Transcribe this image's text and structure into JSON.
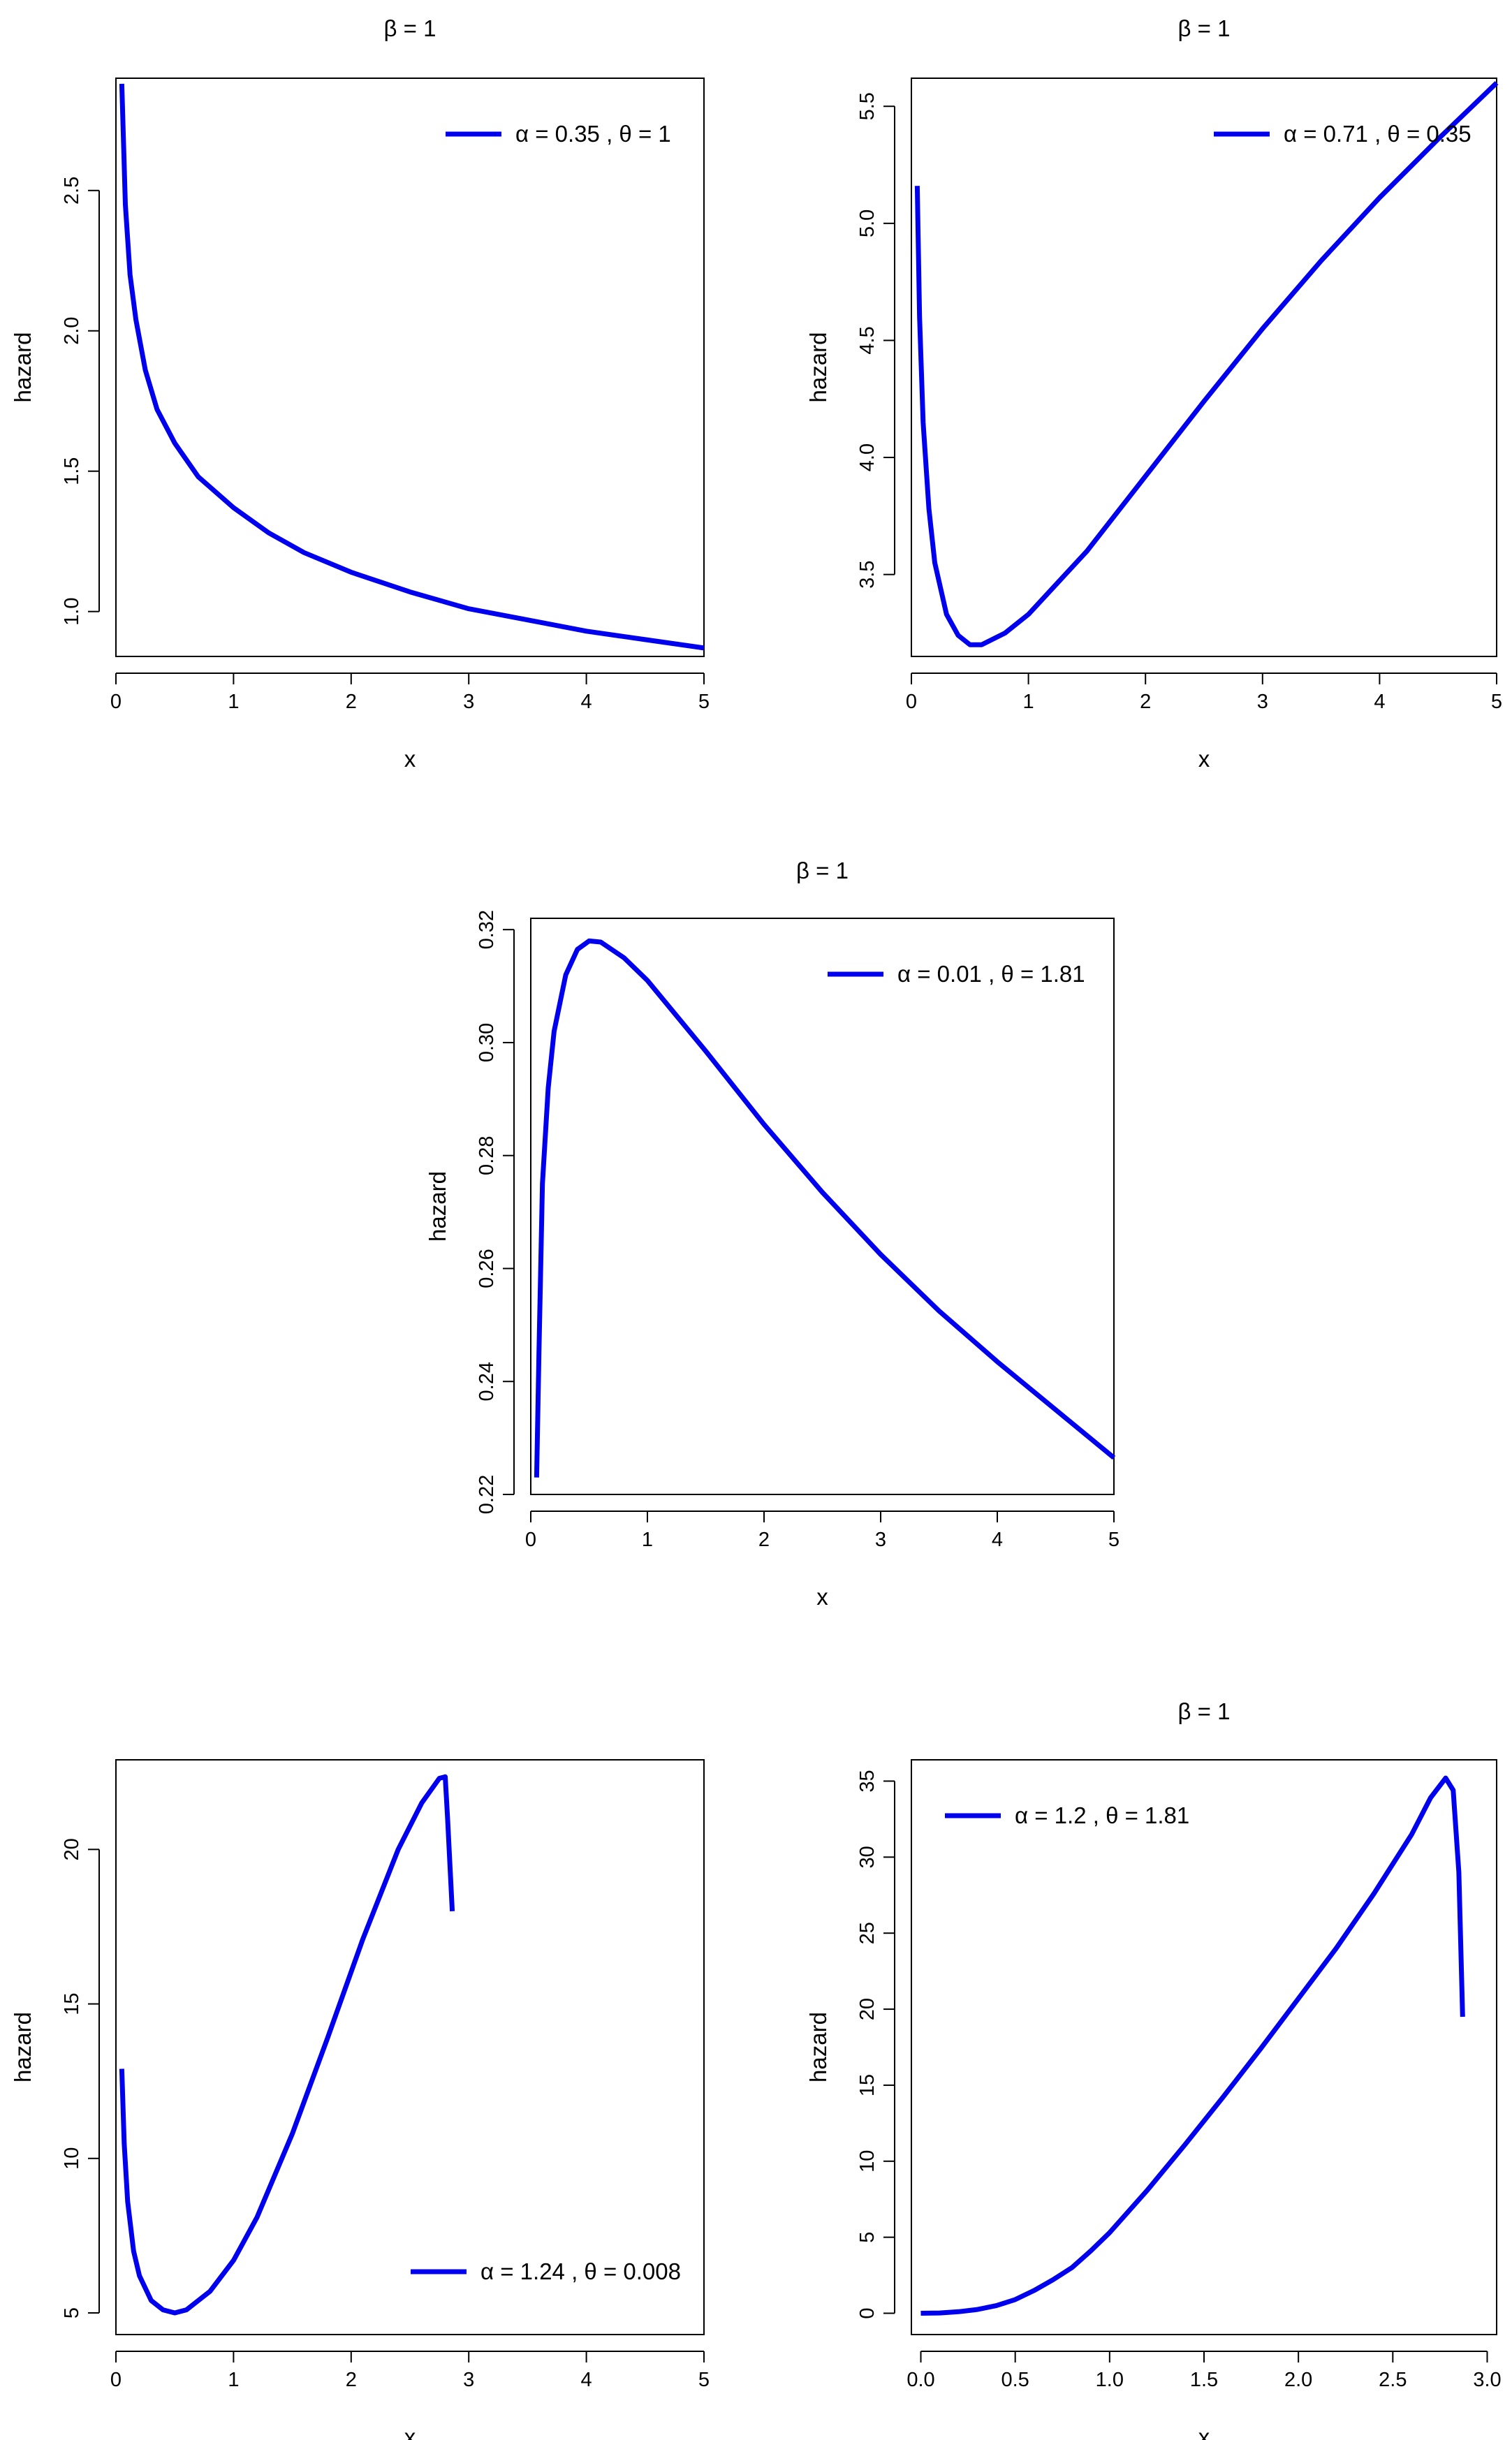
{
  "chart_data": [
    {
      "type": "line",
      "title": "β = 1",
      "xlabel": "x",
      "ylabel": "hazard",
      "xlim": [
        0,
        5
      ],
      "ylim": [
        0.84,
        2.9
      ],
      "x_ticks": [
        "0",
        "1",
        "2",
        "3",
        "4",
        "5"
      ],
      "y_ticks": [
        "1.0",
        "1.5",
        "2.0",
        "2.5"
      ],
      "legend_position": "top-right",
      "legend_label": "α = 0.35 , θ = 1",
      "color": "#0000ee",
      "series": [
        {
          "x": [
            0.05,
            0.08,
            0.12,
            0.17,
            0.25,
            0.35,
            0.5,
            0.7,
            1.0,
            1.3,
            1.6,
            2.0,
            2.5,
            3.0,
            3.5,
            4.0,
            4.5,
            5.0
          ],
          "y": [
            2.88,
            2.45,
            2.2,
            2.04,
            1.86,
            1.72,
            1.6,
            1.48,
            1.37,
            1.28,
            1.21,
            1.14,
            1.07,
            1.01,
            0.97,
            0.93,
            0.9,
            0.87
          ]
        }
      ]
    },
    {
      "type": "line",
      "title": "β = 1",
      "xlabel": "x",
      "ylabel": "hazard",
      "xlim": [
        0,
        5
      ],
      "ylim": [
        3.15,
        5.62
      ],
      "x_ticks": [
        "0",
        "1",
        "2",
        "3",
        "4",
        "5"
      ],
      "y_ticks": [
        "3.5",
        "4.0",
        "4.5",
        "5.0",
        "5.5"
      ],
      "legend_position": "top-right",
      "legend_label": "α = 0.71 , θ = 0.35",
      "color": "#0000ee",
      "series": [
        {
          "x": [
            0.05,
            0.07,
            0.1,
            0.15,
            0.2,
            0.3,
            0.4,
            0.5,
            0.6,
            0.8,
            1.0,
            1.5,
            2.0,
            2.5,
            3.0,
            3.5,
            4.0,
            4.5,
            5.0
          ],
          "y": [
            5.16,
            4.6,
            4.15,
            3.78,
            3.55,
            3.33,
            3.24,
            3.2,
            3.2,
            3.25,
            3.33,
            3.6,
            3.92,
            4.24,
            4.55,
            4.84,
            5.11,
            5.36,
            5.6
          ]
        }
      ]
    },
    {
      "type": "line",
      "title": "β = 1",
      "xlabel": "x",
      "ylabel": "hazard",
      "xlim": [
        0,
        5
      ],
      "ylim": [
        0.22,
        0.322
      ],
      "x_ticks": [
        "0",
        "1",
        "2",
        "3",
        "4",
        "5"
      ],
      "y_ticks": [
        "0.22",
        "0.24",
        "0.26",
        "0.28",
        "0.30",
        "0.32"
      ],
      "legend_position": "top-right",
      "legend_label": "α = 0.01 , θ = 1.81",
      "color": "#0000ee",
      "series": [
        {
          "x": [
            0.05,
            0.07,
            0.1,
            0.15,
            0.2,
            0.3,
            0.4,
            0.5,
            0.6,
            0.8,
            1.0,
            1.5,
            2.0,
            2.5,
            3.0,
            3.5,
            4.0,
            4.5,
            5.0
          ],
          "y": [
            0.223,
            0.245,
            0.275,
            0.292,
            0.302,
            0.312,
            0.3165,
            0.318,
            0.3178,
            0.315,
            0.311,
            0.2985,
            0.2855,
            0.2735,
            0.2625,
            0.2525,
            0.2435,
            0.235,
            0.2265
          ]
        }
      ]
    },
    {
      "type": "line",
      "title": "",
      "xlabel": "x",
      "ylabel": "hazard",
      "xlim": [
        0,
        5
      ],
      "ylim": [
        4.3,
        22.9
      ],
      "x_ticks": [
        "0",
        "1",
        "2",
        "3",
        "4",
        "5"
      ],
      "y_ticks": [
        "5",
        "10",
        "15",
        "20"
      ],
      "legend_position": "bottom-right",
      "legend_label": "α = 1.24 , θ = 0.008",
      "color": "#0000ee",
      "series": [
        {
          "x": [
            0.05,
            0.07,
            0.1,
            0.15,
            0.2,
            0.3,
            0.4,
            0.5,
            0.6,
            0.8,
            1.0,
            1.2,
            1.5,
            1.8,
            2.1,
            2.4,
            2.6,
            2.75,
            2.8,
            2.82,
            2.86
          ],
          "y": [
            12.9,
            10.5,
            8.6,
            7.0,
            6.2,
            5.4,
            5.1,
            5.0,
            5.1,
            5.7,
            6.7,
            8.1,
            10.8,
            13.9,
            17.1,
            20.0,
            21.5,
            22.3,
            22.35,
            21.0,
            18.0
          ]
        }
      ]
    },
    {
      "type": "line",
      "title": "β = 1",
      "xlabel": "x",
      "ylabel": "hazard",
      "xlim": [
        -0.05,
        3.05
      ],
      "ylim": [
        -1.4,
        36.4
      ],
      "x_ticks": [
        "0.0",
        "0.5",
        "1.0",
        "1.5",
        "2.0",
        "2.5",
        "3.0"
      ],
      "y_ticks": [
        "0",
        "5",
        "10",
        "15",
        "20",
        "25",
        "30",
        "35"
      ],
      "legend_position": "top-left",
      "legend_label": "α = 1.2 , θ = 1.81",
      "color": "#0000ee",
      "series": [
        {
          "x": [
            0.0,
            0.1,
            0.2,
            0.3,
            0.4,
            0.5,
            0.6,
            0.7,
            0.8,
            0.9,
            1.0,
            1.2,
            1.4,
            1.6,
            1.8,
            2.0,
            2.2,
            2.4,
            2.6,
            2.7,
            2.78,
            2.82,
            2.85,
            2.87
          ],
          "y": [
            0.0,
            0.02,
            0.1,
            0.25,
            0.5,
            0.9,
            1.5,
            2.2,
            3.0,
            4.1,
            5.3,
            8.1,
            11.1,
            14.2,
            17.4,
            20.7,
            24.0,
            27.6,
            31.5,
            33.9,
            35.2,
            34.4,
            29.0,
            19.5
          ]
        }
      ]
    }
  ]
}
